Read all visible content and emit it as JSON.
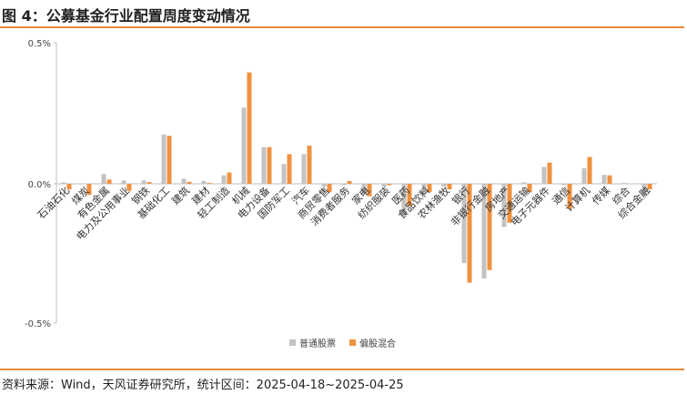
{
  "figure": {
    "title": "图 4：公募基金行业配置周度变动情况",
    "source": "资料来源：Wind，天风证券研究所，统计区间：2025-04-18~2025-04-25"
  },
  "colors": {
    "series_a": "#c3c3c3",
    "series_b": "#f0913f",
    "rule": "#ec8a3a",
    "axis": "#bfbfbf"
  },
  "chart_data": {
    "type": "bar",
    "ylim": [
      -0.5,
      0.5
    ],
    "yticks": [
      "0.5%",
      "0.0%",
      "-0.5%"
    ],
    "legend_position": "bottom",
    "categories": [
      "石油石化",
      "煤炭",
      "有色金属",
      "电力及公用事业",
      "钢铁",
      "基础化工",
      "建筑",
      "建材",
      "轻工制造",
      "机械",
      "电力设备",
      "国防军工",
      "汽车",
      "商贸零售",
      "消费者服务",
      "家电",
      "纺织服装",
      "医药",
      "食品饮料",
      "农林渔牧",
      "银行",
      "非银行金融",
      "房地产",
      "交通运输",
      "电子元器件",
      "通信",
      "计算机",
      "传媒",
      "综合",
      "综合金融"
    ],
    "series": [
      {
        "name": "普通股票",
        "values": [
          0.005,
          0.0,
          0.035,
          0.012,
          0.012,
          0.175,
          0.018,
          0.01,
          0.03,
          0.27,
          0.13,
          0.07,
          0.105,
          -0.01,
          -0.005,
          -0.035,
          -0.01,
          -0.11,
          -0.04,
          -0.01,
          -0.285,
          -0.34,
          -0.155,
          0.005,
          0.06,
          -0.005,
          0.055,
          0.032,
          0.003,
          -0.04
        ]
      },
      {
        "name": "偏股混合",
        "values": [
          -0.02,
          -0.04,
          0.015,
          -0.025,
          0.006,
          0.17,
          0.007,
          0.003,
          0.04,
          0.395,
          0.13,
          0.105,
          0.135,
          -0.03,
          0.01,
          -0.045,
          -0.005,
          -0.08,
          -0.03,
          -0.02,
          -0.355,
          -0.31,
          -0.14,
          -0.03,
          0.075,
          -0.09,
          0.095,
          0.03,
          0.0,
          -0.02
        ]
      }
    ]
  }
}
